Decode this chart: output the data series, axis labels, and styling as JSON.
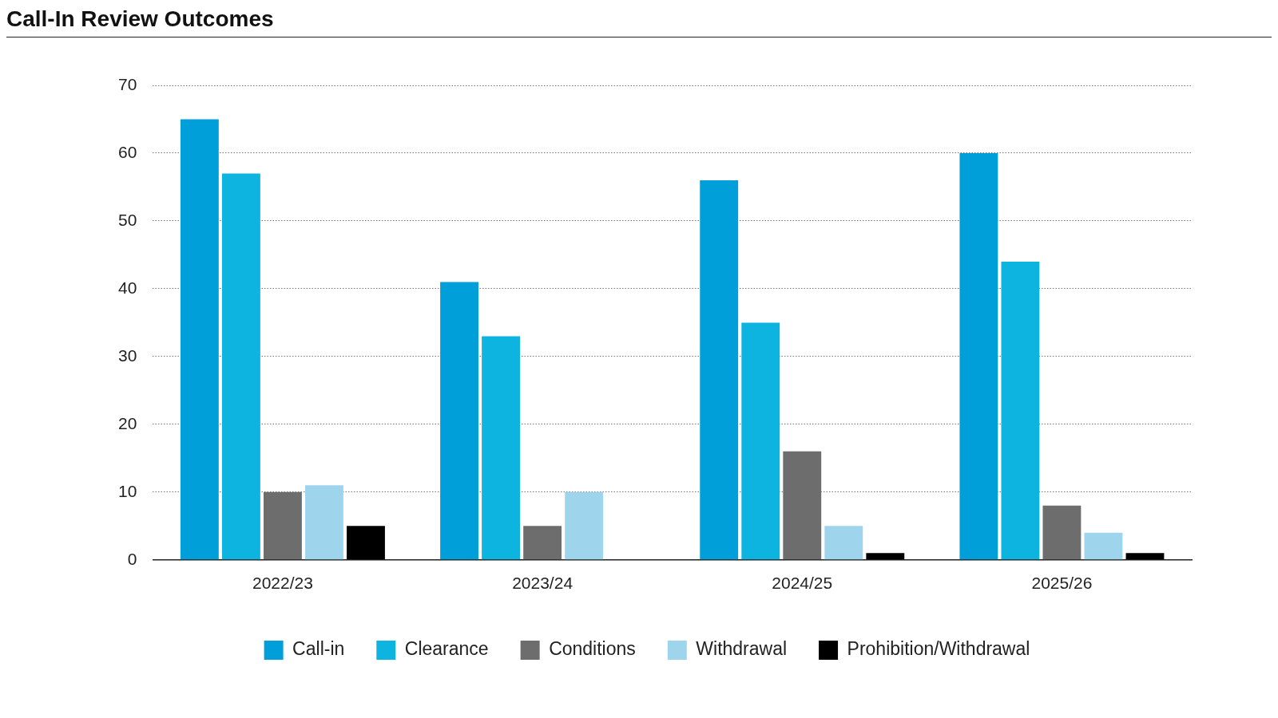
{
  "chart_data": {
    "type": "bar",
    "title": "Call-In Review Outcomes",
    "categories": [
      "2022/23",
      "2023/24",
      "2024/25",
      "2025/26"
    ],
    "series": [
      {
        "name": "Call-in",
        "color": "#009fd9",
        "values": [
          65,
          41,
          56,
          60
        ]
      },
      {
        "name": "Clearance",
        "color": "#0eb4e0",
        "values": [
          57,
          33,
          35,
          44
        ]
      },
      {
        "name": "Conditions",
        "color": "#6d6d6d",
        "values": [
          10,
          5,
          16,
          8
        ]
      },
      {
        "name": "Withdrawal",
        "color": "#9ed5ec",
        "values": [
          11,
          10,
          5,
          4
        ]
      },
      {
        "name": "Prohibition/Withdrawal",
        "color": "#000000",
        "values": [
          5,
          null,
          1,
          1
        ]
      }
    ],
    "ylim": [
      0,
      70
    ],
    "yticks": [
      0,
      10,
      20,
      30,
      40,
      50,
      60,
      70
    ],
    "grid": "y",
    "legend": "bottom"
  }
}
